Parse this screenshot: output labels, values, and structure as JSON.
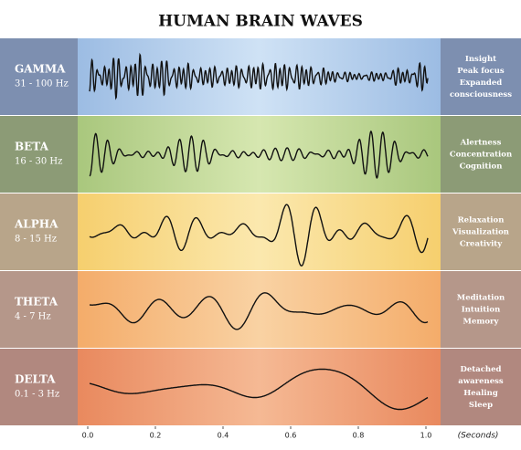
{
  "title": "HUMAN BRAIN WAVES",
  "bands": [
    {
      "name": "GAMMA",
      "range": "31 - 100 Hz",
      "effects": [
        "Insight",
        "Peak focus",
        "Expanded",
        "consciousness"
      ]
    },
    {
      "name": "BETA",
      "range": "16 - 30 Hz",
      "effects": [
        "Alertness",
        "Concentration",
        "Cognition"
      ]
    },
    {
      "name": "ALPHA",
      "range": "8 - 15 Hz",
      "effects": [
        "Relaxation",
        "Visualization",
        "Creativity"
      ]
    },
    {
      "name": "THETA",
      "range": "4 - 7 Hz",
      "effects": [
        "Meditation",
        "Intuition",
        "Memory"
      ]
    },
    {
      "name": "DELTA",
      "range": "0.1 - 3 Hz",
      "effects": [
        "Detached",
        "awareness",
        "Healing",
        "Sleep"
      ]
    }
  ],
  "axis": {
    "ticks": [
      {
        "value": 0,
        "label": "0.0"
      },
      {
        "value": 0.2,
        "label": "0.2"
      },
      {
        "value": 0.4,
        "label": "0.4"
      },
      {
        "value": 0.6,
        "label": "0.6"
      },
      {
        "value": 0.8,
        "label": "0.8"
      },
      {
        "value": 1,
        "label": "1.0"
      }
    ],
    "unit": "(Seconds)"
  }
}
